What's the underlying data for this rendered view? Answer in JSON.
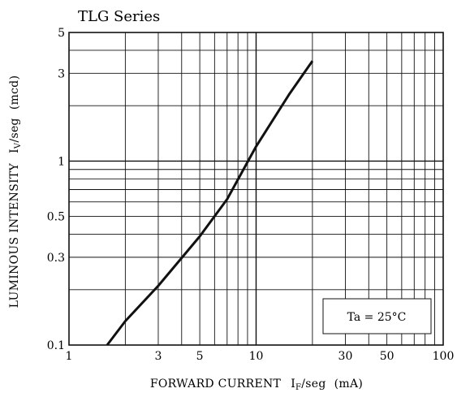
{
  "chart_data": {
    "type": "line",
    "title": "TLG Series",
    "xlabel": {
      "main": "FORWARD CURRENT",
      "symbol": "I",
      "subscript": "F",
      "suffix": "/seg",
      "unit": "(mA)"
    },
    "ylabel": {
      "main": "LUMINOUS INTENSITY",
      "symbol": "I",
      "subscript": "V",
      "suffix": "/seg",
      "unit": "(mcd)"
    },
    "x_scale": "log",
    "y_scale": "log",
    "xlim": [
      1,
      100
    ],
    "ylim": [
      0.1,
      5
    ],
    "x_ticks": [
      {
        "value": 1,
        "label": "1"
      },
      {
        "value": 3,
        "label": "3"
      },
      {
        "value": 5,
        "label": "5"
      },
      {
        "value": 10,
        "label": "10"
      },
      {
        "value": 30,
        "label": "30"
      },
      {
        "value": 50,
        "label": "50"
      },
      {
        "value": 100,
        "label": "100"
      }
    ],
    "y_ticks": [
      {
        "value": 0.1,
        "label": "0.1"
      },
      {
        "value": 0.3,
        "label": "0.3"
      },
      {
        "value": 0.5,
        "label": "0.5"
      },
      {
        "value": 1,
        "label": "1"
      },
      {
        "value": 3,
        "label": "3"
      },
      {
        "value": 5,
        "label": "5"
      }
    ],
    "x_grid": [
      2,
      3,
      4,
      5,
      6,
      7,
      8,
      9,
      10,
      20,
      30,
      40,
      50,
      60,
      70,
      80,
      90
    ],
    "y_grid": [
      0.2,
      0.3,
      0.4,
      0.5,
      0.6,
      0.7,
      0.8,
      0.9,
      1,
      2,
      3,
      4
    ],
    "grid": true,
    "series": [
      {
        "x": [
          1.6,
          2,
          3,
          5,
          7,
          10,
          15,
          20
        ],
        "y": [
          0.1,
          0.135,
          0.21,
          0.39,
          0.62,
          1.2,
          2.3,
          3.5
        ]
      }
    ],
    "annotation": "Ta = 25°C"
  }
}
